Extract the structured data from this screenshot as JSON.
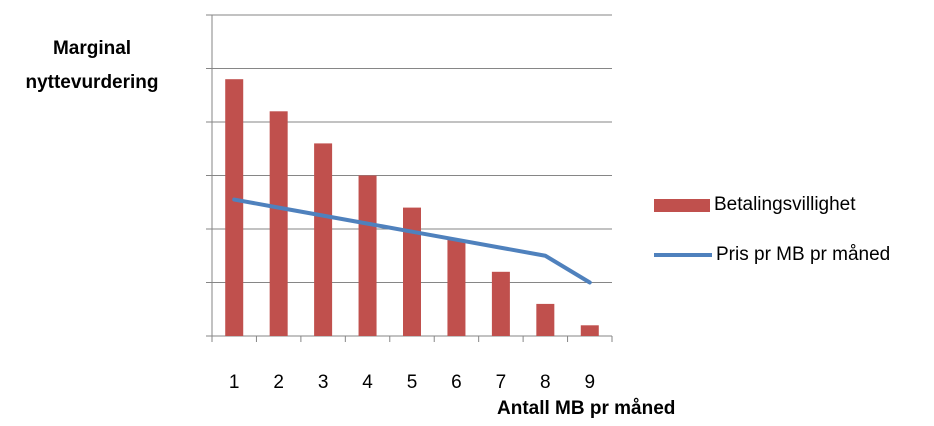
{
  "chart_data": {
    "type": "bar",
    "categories": [
      "1",
      "2",
      "3",
      "4",
      "5",
      "6",
      "7",
      "8",
      "9"
    ],
    "series": [
      {
        "name": "Betalingsvillighet",
        "kind": "bar",
        "color": "#C0504D",
        "values": [
          4.8,
          4.2,
          3.6,
          3.0,
          2.4,
          1.8,
          1.2,
          0.6,
          0.2
        ]
      },
      {
        "name": "Pris pr MB pr måned",
        "kind": "line",
        "color": "#4F81BD",
        "values": [
          2.55,
          2.4,
          2.25,
          2.1,
          1.95,
          1.8,
          1.65,
          1.5,
          1.0
        ]
      }
    ],
    "ylabel_lines": [
      "Marginal",
      "nyttevurdering"
    ],
    "xlabel": "Antall MB pr måned",
    "ylim": [
      0,
      6
    ],
    "grid": true,
    "legend": "right"
  }
}
